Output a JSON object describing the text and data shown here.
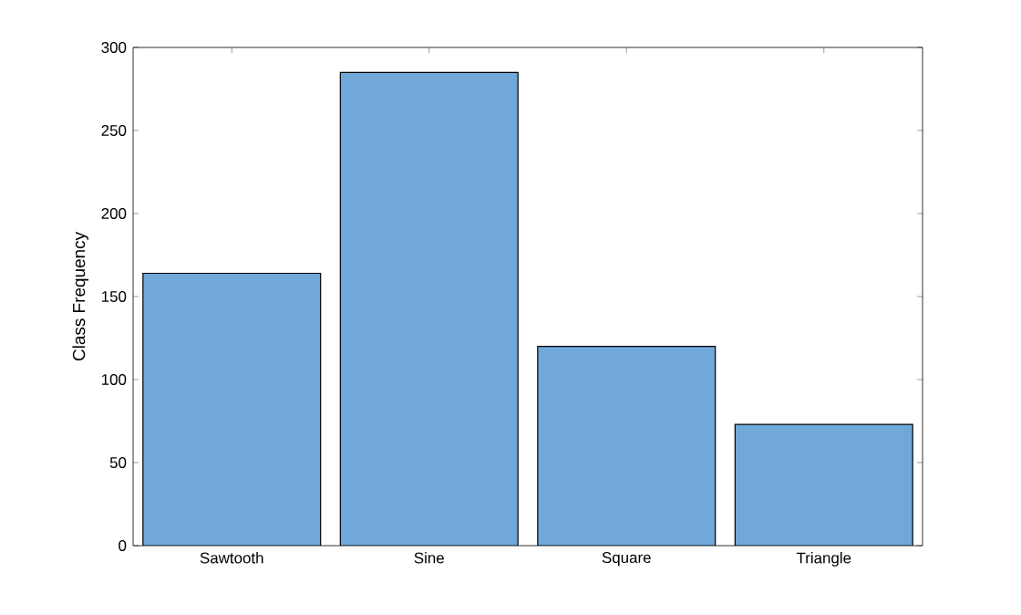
{
  "chart_data": {
    "type": "bar",
    "ylabel": "Class Frequency",
    "categories": [
      "Sawtooth",
      "Sine",
      "Square",
      "Triangle"
    ],
    "values": [
      164,
      285,
      120,
      73
    ],
    "color": "#6fa8d9",
    "ylim": [
      0,
      300
    ],
    "yticks": [
      0,
      50,
      100,
      150,
      200,
      250,
      300
    ]
  }
}
